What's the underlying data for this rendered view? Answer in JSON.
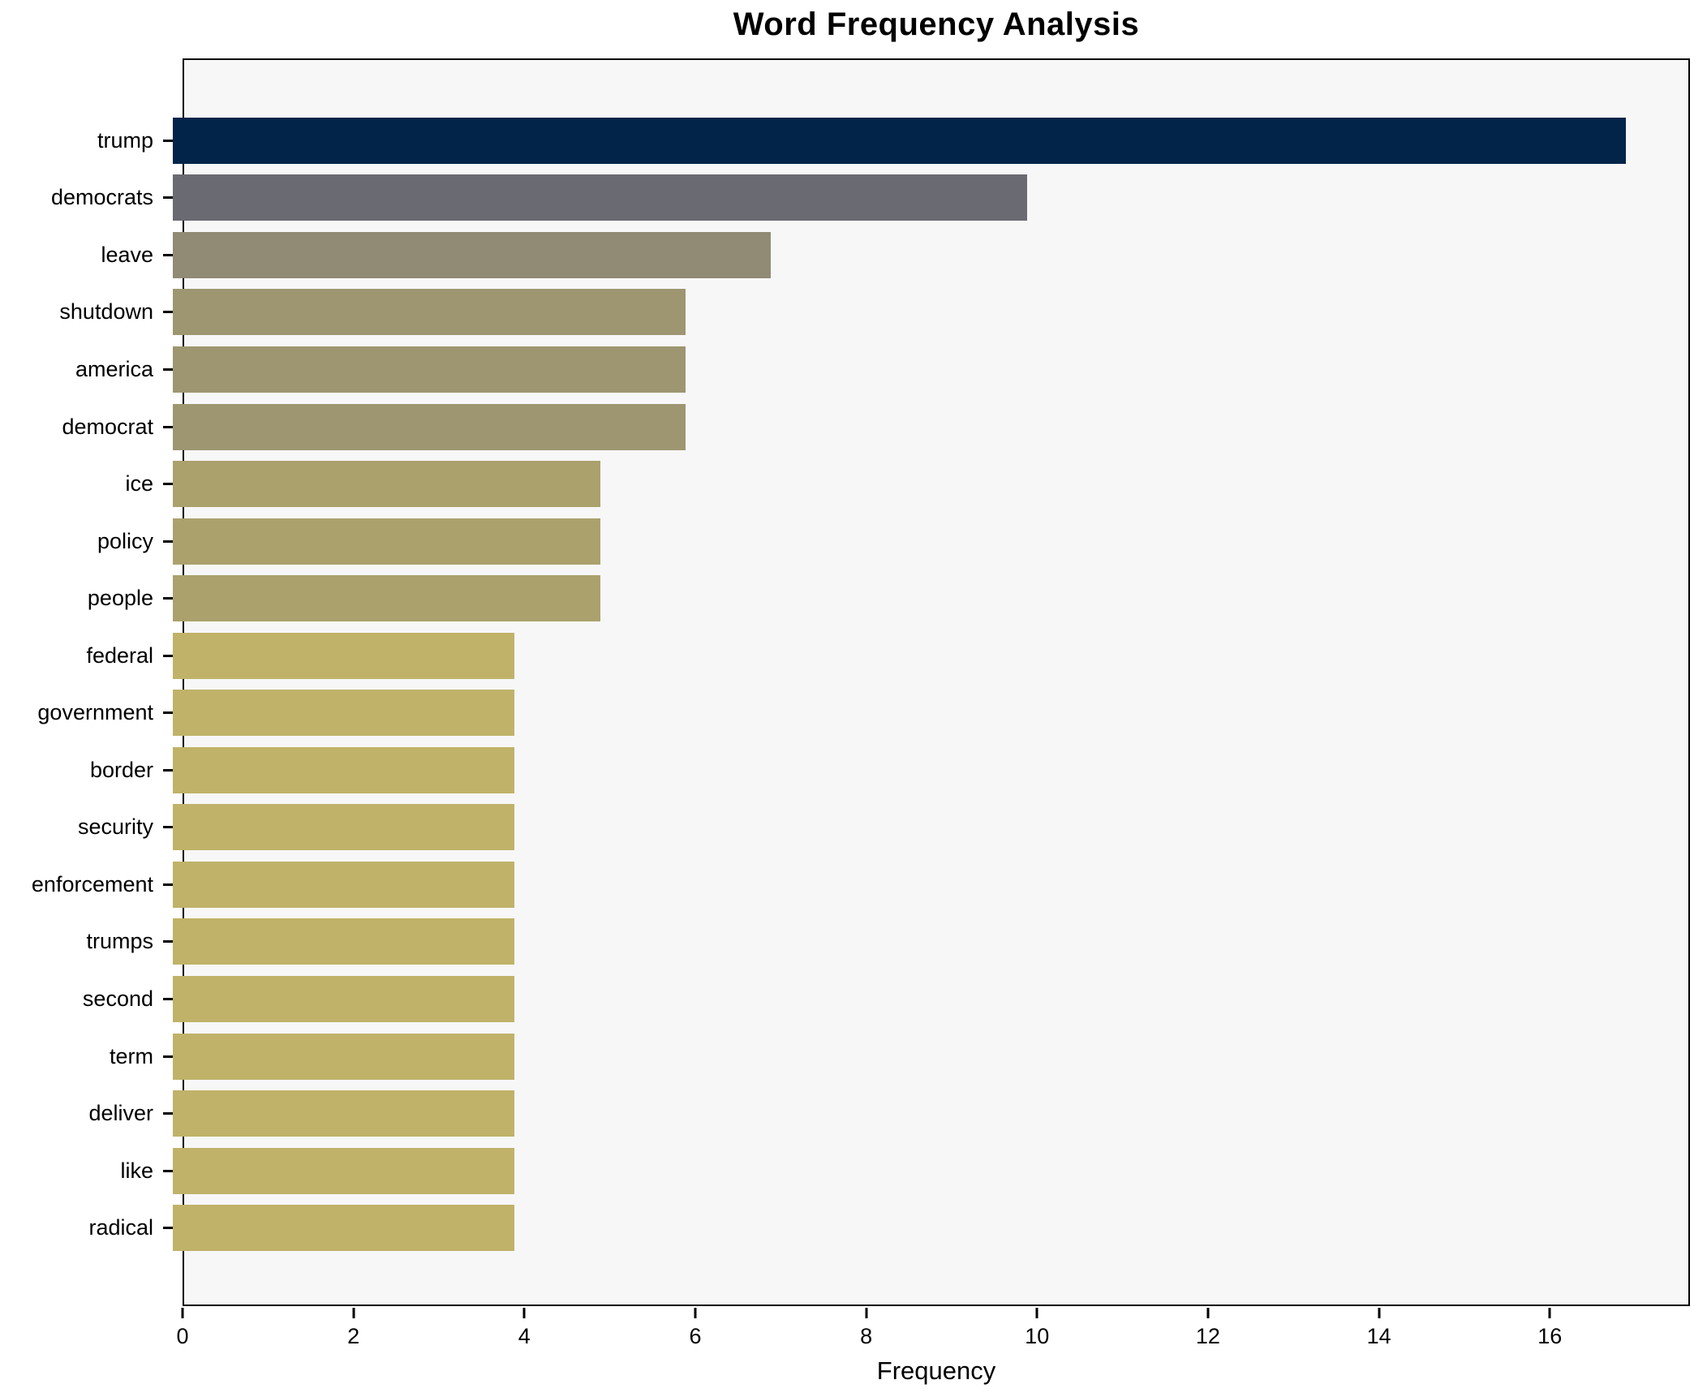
{
  "chart_data": {
    "type": "bar",
    "orientation": "horizontal",
    "title": "Word Frequency Analysis",
    "xlabel": "Frequency",
    "ylabel": "",
    "categories": [
      "trump",
      "democrats",
      "leave",
      "shutdown",
      "america",
      "democrat",
      "ice",
      "policy",
      "people",
      "federal",
      "government",
      "border",
      "security",
      "enforcement",
      "trumps",
      "second",
      "term",
      "deliver",
      "like",
      "radical"
    ],
    "values": [
      17,
      10,
      7,
      6,
      6,
      6,
      5,
      5,
      5,
      4,
      4,
      4,
      4,
      4,
      4,
      4,
      4,
      4,
      4,
      4
    ],
    "bar_colors": [
      "#032449",
      "#6a6a72",
      "#918a74",
      "#9d9671",
      "#9d9671",
      "#9d9671",
      "#aba16d",
      "#aba16d",
      "#aba16d",
      "#c0b269",
      "#c0b269",
      "#c0b269",
      "#c0b269",
      "#c0b269",
      "#c0b269",
      "#c0b269",
      "#c0b269",
      "#c0b269",
      "#c0b269",
      "#c0b269"
    ],
    "x_ticks": [
      0,
      2,
      4,
      6,
      8,
      10,
      12,
      14,
      16
    ],
    "xlim": [
      0,
      17.64
    ],
    "grid": false,
    "legend": null,
    "plot_background": "#f7f7f8",
    "figure_background": "#ffffff",
    "spine_color": "#000000"
  }
}
